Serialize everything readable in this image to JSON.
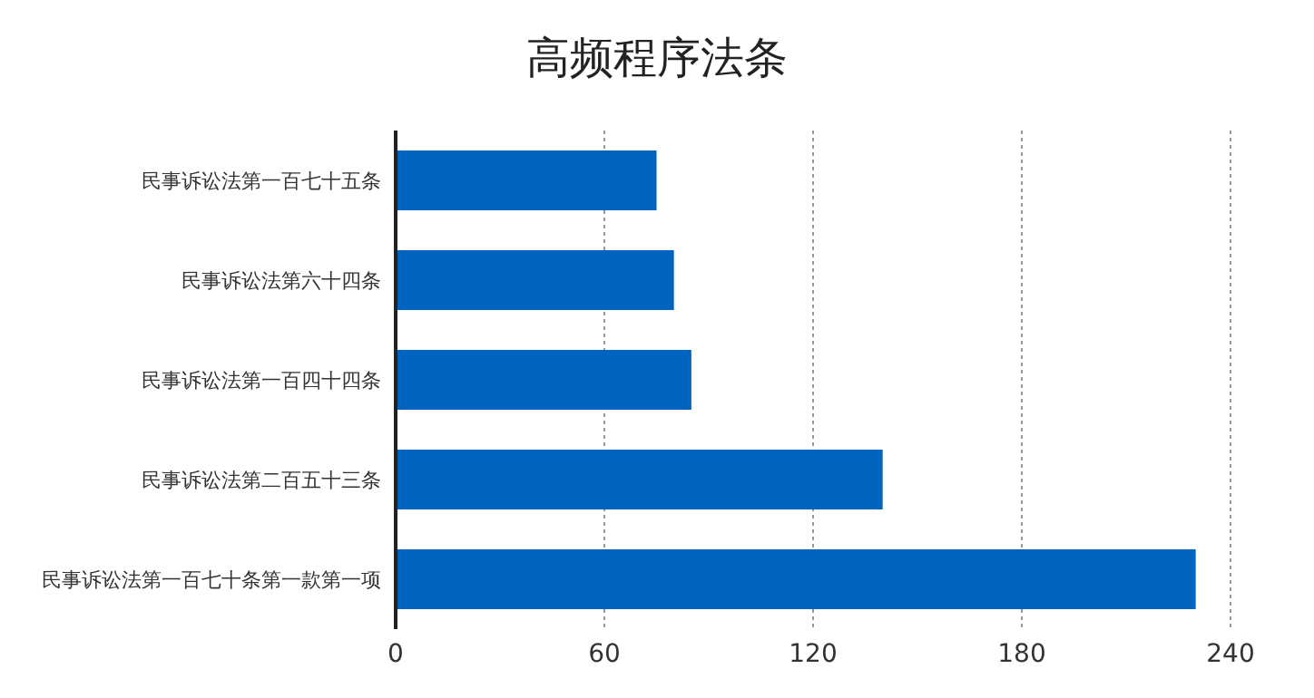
{
  "chart_data": {
    "type": "bar",
    "orientation": "horizontal",
    "title": "高频程序法条",
    "categories": [
      "民事诉讼法第一百七十五条",
      "民事诉讼法第六十四条",
      "民事诉讼法第一百四十四条",
      "民事诉讼法第二百五十三条",
      "民事诉讼法第一百七十条第一款第一项"
    ],
    "values": [
      75,
      80,
      85,
      140,
      230
    ],
    "color": "#0063be",
    "xlim": [
      0,
      240
    ],
    "xticks": [
      0,
      60,
      120,
      180,
      240
    ],
    "grid": "x"
  }
}
